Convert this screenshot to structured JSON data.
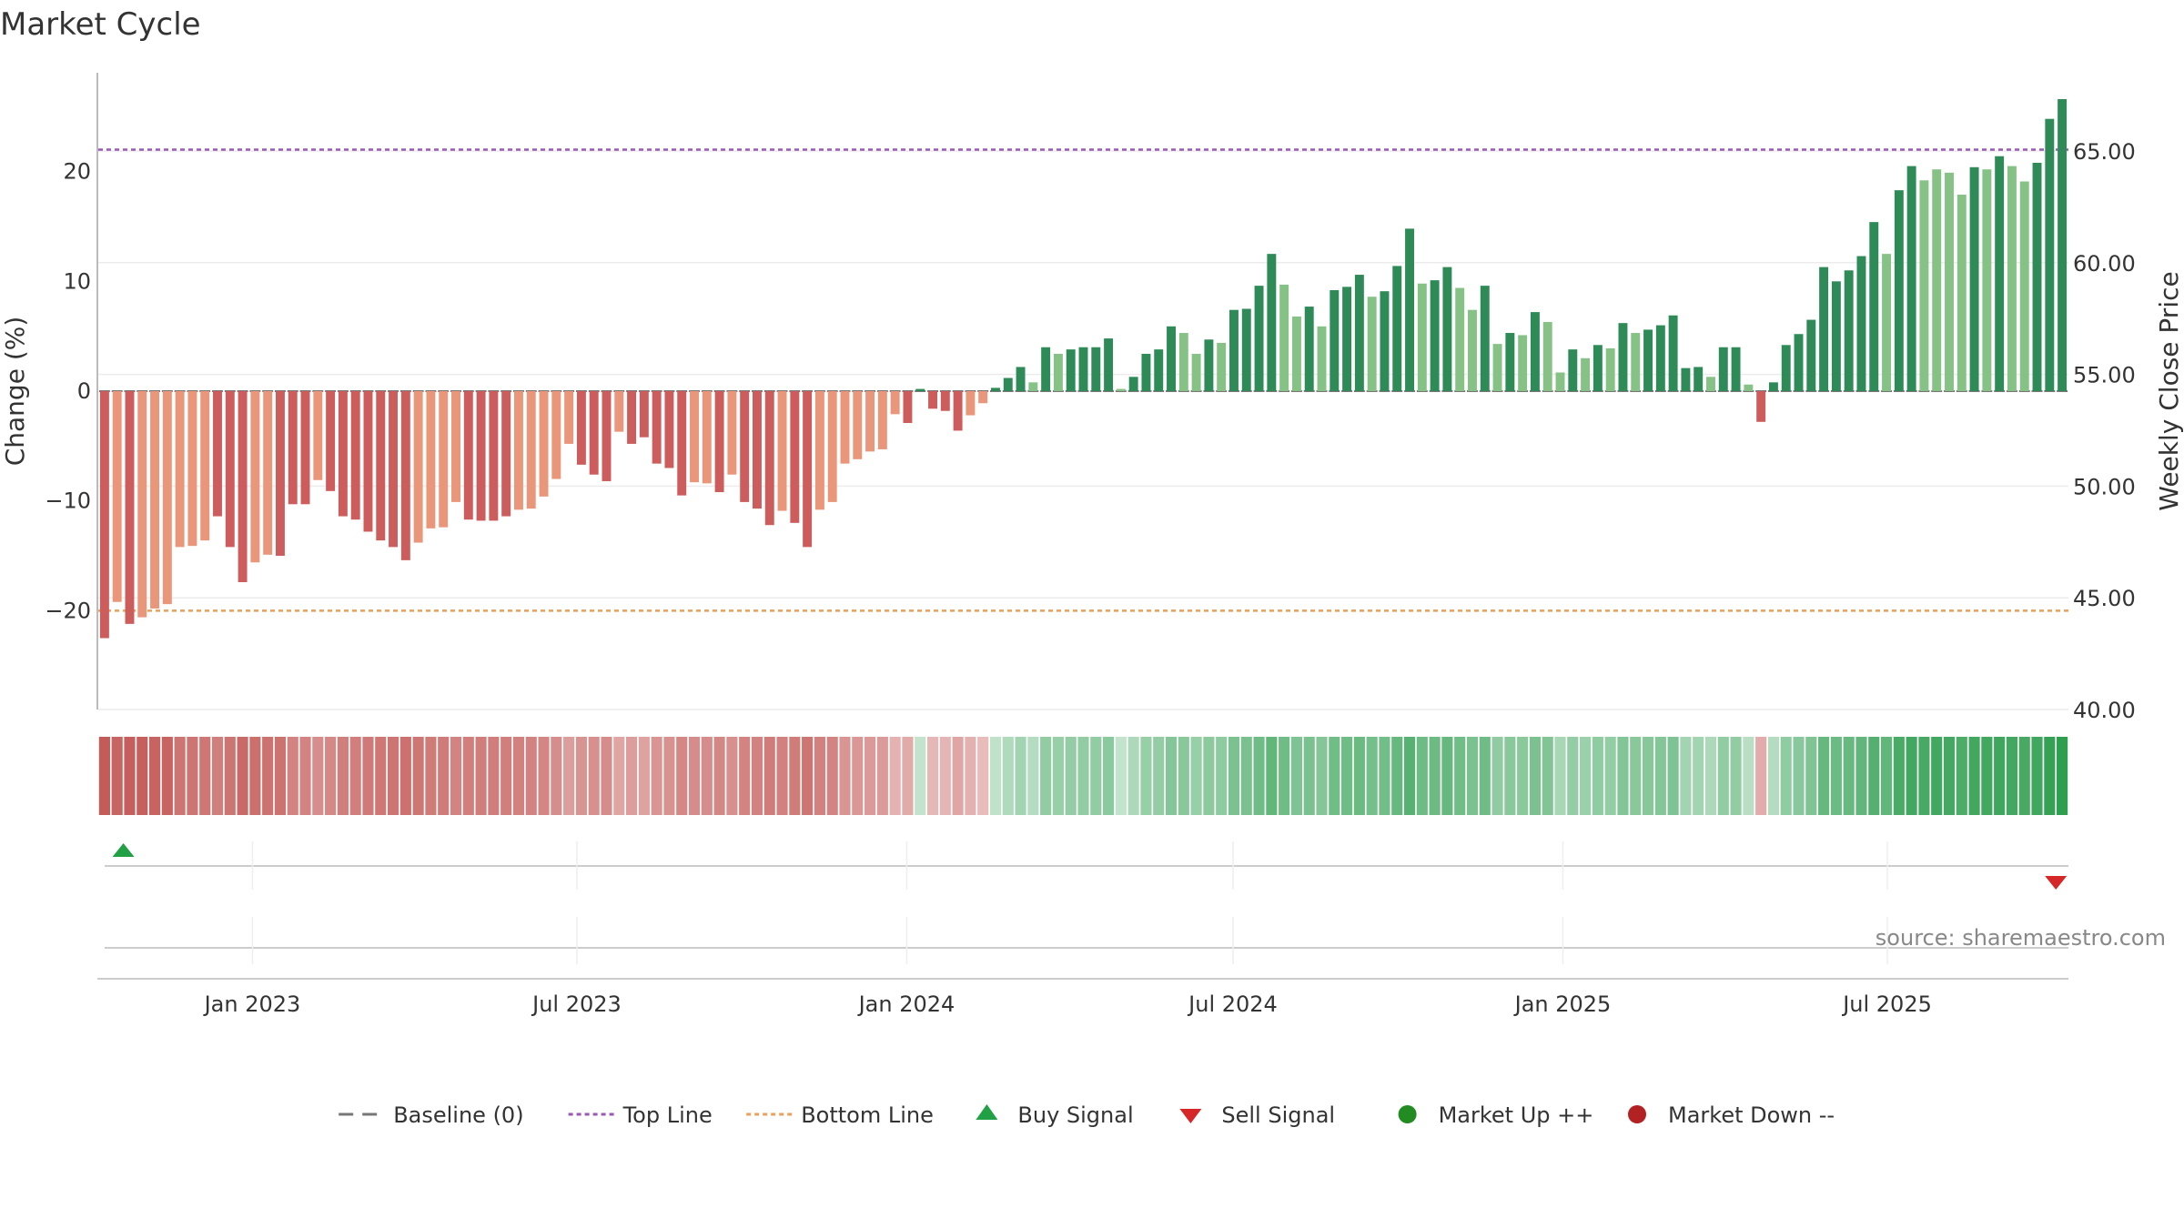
{
  "chart_data": {
    "type": "bar",
    "title": "Market Cycle",
    "ylabel": "Change (%)",
    "y2label": "Weekly Close Price",
    "ylim": [
      -29,
      29
    ],
    "y2lim": [
      40,
      68.5
    ],
    "yticks": [
      20,
      10,
      0,
      -10,
      -20
    ],
    "yticklabels": [
      "20",
      "10",
      "0",
      "−10",
      "−20"
    ],
    "y2ticks": [
      65,
      60,
      55,
      50,
      45,
      40
    ],
    "y2ticklabels": [
      "65.00",
      "60.00",
      "55.00",
      "50.00",
      "45.00",
      "40.00"
    ],
    "top_line": 22,
    "bottom_line": -20,
    "x_start": "2022-10-07",
    "x_end": "2025-10-10",
    "xticks": [
      {
        "date": "2023-01-01",
        "label": "Jan 2023"
      },
      {
        "date": "2023-07-01",
        "label": "Jul 2023"
      },
      {
        "date": "2024-01-01",
        "label": "Jan 2024"
      },
      {
        "date": "2024-07-01",
        "label": "Jul 2024"
      },
      {
        "date": "2025-01-01",
        "label": "Jan 2025"
      },
      {
        "date": "2025-07-01",
        "label": "Jul 2025"
      }
    ],
    "values": [
      -22.5,
      -19.2,
      -21.2,
      -20.6,
      -19.8,
      -19.4,
      -14.2,
      -14.1,
      -13.6,
      -11.4,
      -14.2,
      -17.4,
      -15.6,
      -14.9,
      -15.0,
      -10.3,
      -10.3,
      -8.1,
      -9.1,
      -11.4,
      -11.7,
      -12.8,
      -13.6,
      -14.2,
      -15.4,
      -13.8,
      -12.5,
      -12.4,
      -10.1,
      -11.7,
      -11.8,
      -11.8,
      -11.4,
      -10.8,
      -10.7,
      -9.6,
      -8.0,
      -4.8,
      -6.7,
      -7.6,
      -8.2,
      -3.7,
      -4.8,
      -4.2,
      -6.6,
      -7.0,
      -9.5,
      -8.3,
      -8.4,
      -9.2,
      -7.6,
      -10.1,
      -10.7,
      -12.2,
      -10.9,
      -12.0,
      -14.2,
      -10.8,
      -10.1,
      -6.6,
      -6.2,
      -5.5,
      -5.3,
      -2.1,
      -2.9,
      0.2,
      -1.6,
      -1.8,
      -3.6,
      -2.2,
      -1.1,
      0.3,
      1.2,
      2.2,
      0.8,
      4.0,
      3.4,
      3.8,
      4.0,
      4.0,
      4.8,
      0.2,
      1.3,
      3.4,
      3.8,
      5.9,
      5.3,
      3.4,
      4.7,
      4.4,
      7.4,
      7.5,
      9.6,
      12.5,
      9.7,
      6.8,
      7.7,
      5.9,
      9.2,
      9.5,
      10.6,
      8.6,
      9.1,
      11.4,
      14.8,
      9.8,
      10.1,
      11.3,
      9.4,
      7.4,
      9.6,
      4.3,
      5.3,
      5.1,
      7.2,
      6.3,
      1.7,
      3.8,
      3.0,
      4.2,
      3.9,
      6.2,
      5.3,
      5.6,
      6.0,
      6.9,
      2.1,
      2.2,
      1.3,
      4.0,
      4.0,
      0.6,
      -2.8,
      0.8,
      4.2,
      5.2,
      6.5,
      11.3,
      10.0,
      11.0,
      12.3,
      15.4,
      12.5,
      18.3,
      20.5,
      19.2,
      20.2,
      19.9,
      17.9,
      20.4,
      20.2,
      21.4,
      20.5,
      19.1,
      20.8,
      24.8,
      26.6
    ],
    "variant": [
      1,
      0,
      1,
      0,
      0,
      0,
      0,
      0,
      0,
      1,
      1,
      1,
      0,
      0,
      1,
      1,
      1,
      0,
      1,
      1,
      1,
      1,
      1,
      1,
      1,
      0,
      0,
      0,
      0,
      1,
      1,
      1,
      1,
      0,
      0,
      0,
      0,
      0,
      1,
      1,
      1,
      0,
      1,
      1,
      1,
      1,
      1,
      0,
      0,
      1,
      0,
      1,
      1,
      1,
      0,
      1,
      1,
      0,
      0,
      0,
      0,
      0,
      0,
      0,
      1,
      1,
      1,
      1,
      1,
      0,
      0,
      1,
      1,
      1,
      0,
      1,
      0,
      1,
      1,
      1,
      1,
      0,
      1,
      1,
      1,
      1,
      0,
      0,
      1,
      0,
      1,
      1,
      1,
      1,
      0,
      0,
      1,
      0,
      1,
      1,
      1,
      0,
      1,
      1,
      1,
      0,
      1,
      1,
      0,
      0,
      1,
      0,
      1,
      0,
      1,
      0,
      0,
      1,
      0,
      1,
      0,
      1,
      0,
      1,
      1,
      1,
      1,
      1,
      0,
      1,
      1,
      0,
      1,
      1,
      1,
      1,
      1,
      1,
      1,
      1,
      1,
      1,
      0,
      1,
      1,
      0,
      0,
      0,
      0,
      1,
      0,
      1,
      0,
      0,
      1,
      1,
      1
    ],
    "heat_strip": "weekly intensity of change",
    "buy_signals": [
      "2022-10-21"
    ],
    "sell_signals": [
      "2025-10-03"
    ],
    "legend_position": "bottom-center",
    "source": "source: sharemaestro.com",
    "colors": {
      "up_dark": "#2e8b57",
      "up_light": "#86c286",
      "down_dark": "#cd5c5c",
      "down_light": "#e9967a",
      "top_line": "#9b59b6",
      "bottom_line": "#e8a05a",
      "buy": "#22a045",
      "sell": "#d62728",
      "market_up": "#228b22",
      "market_down": "#b22222",
      "baseline": "#777777"
    }
  },
  "legend": [
    {
      "key": "baseline",
      "label": "Baseline (0)",
      "symbol": "dash"
    },
    {
      "key": "top",
      "label": "Top Line",
      "symbol": "dotted-purple"
    },
    {
      "key": "bottom",
      "label": "Bottom Line",
      "symbol": "dotted-orange"
    },
    {
      "key": "buy",
      "label": "Buy Signal",
      "symbol": "triangle-up"
    },
    {
      "key": "sell",
      "label": "Sell Signal",
      "symbol": "triangle-down"
    },
    {
      "key": "up",
      "label": "Market Up ++",
      "symbol": "circle-green"
    },
    {
      "key": "down",
      "label": "Market Down --",
      "symbol": "circle-red"
    }
  ]
}
